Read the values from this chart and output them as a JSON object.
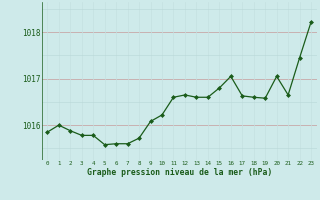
{
  "x": [
    0,
    1,
    2,
    3,
    4,
    5,
    6,
    7,
    8,
    9,
    10,
    11,
    12,
    13,
    14,
    15,
    16,
    17,
    18,
    19,
    20,
    21,
    22,
    23
  ],
  "y": [
    1015.85,
    1016.0,
    1015.88,
    1015.78,
    1015.78,
    1015.58,
    1015.6,
    1015.6,
    1015.72,
    1016.08,
    1016.22,
    1016.6,
    1016.65,
    1016.6,
    1016.6,
    1016.8,
    1017.05,
    1016.63,
    1016.6,
    1016.58,
    1017.05,
    1016.65,
    1017.45,
    1018.22
  ],
  "line_color": "#1a5c1a",
  "marker_color": "#1a5c1a",
  "bg_color": "#ceeaea",
  "grid_color_h": "#b8d8d8",
  "grid_color_v": "#c4e0e0",
  "xlabel": "Graphe pression niveau de la mer (hPa)",
  "xlabel_color": "#1a5c1a",
  "tick_color": "#1a5c1a",
  "ylim": [
    1015.25,
    1018.65
  ],
  "yticks": [
    1016,
    1017,
    1018
  ],
  "xlim": [
    -0.5,
    23.5
  ],
  "xticks": [
    0,
    1,
    2,
    3,
    4,
    5,
    6,
    7,
    8,
    9,
    10,
    11,
    12,
    13,
    14,
    15,
    16,
    17,
    18,
    19,
    20,
    21,
    22,
    23
  ],
  "figsize": [
    3.2,
    2.0
  ],
  "dpi": 100
}
